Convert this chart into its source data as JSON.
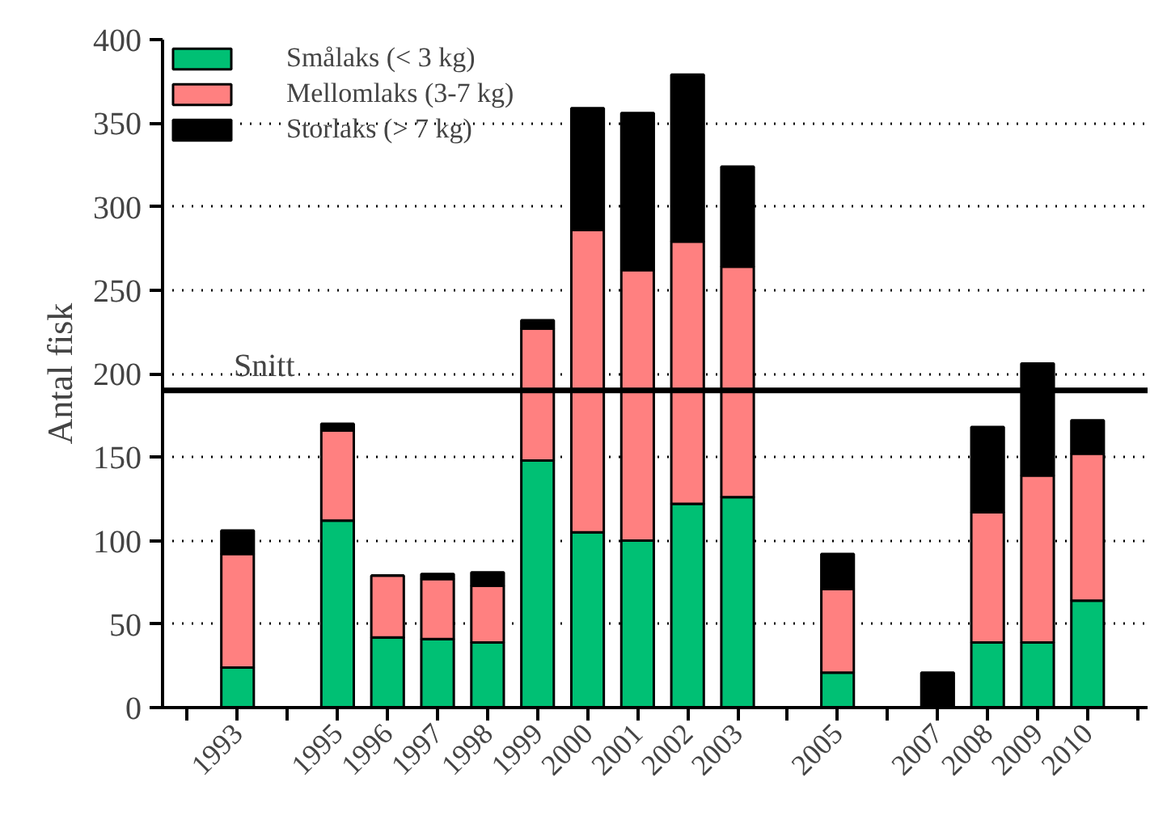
{
  "chart_data": {
    "type": "bar",
    "stacked": true,
    "ylabel": "Antal fisk",
    "x": [
      1993,
      1995,
      1996,
      1997,
      1998,
      1999,
      2000,
      2001,
      2002,
      2003,
      2005,
      2007,
      2008,
      2009,
      2010
    ],
    "series": [
      {
        "name": "Smålaks (< 3 kg)",
        "color": "#00c074",
        "values": [
          24,
          112,
          42,
          41,
          39,
          148,
          105,
          100,
          122,
          126,
          21,
          null,
          39,
          39,
          64
        ]
      },
      {
        "name": "Mellomlaks (3-7 kg)",
        "color": "#ff8080",
        "values": [
          68,
          54,
          37,
          36,
          34,
          79,
          181,
          162,
          157,
          138,
          50,
          null,
          78,
          100,
          88
        ]
      },
      {
        "name": "Storlaks (> 7 kg)",
        "color": "#000000",
        "values": [
          14,
          4,
          0,
          3,
          8,
          5,
          73,
          94,
          100,
          60,
          21,
          21,
          51,
          67,
          20
        ]
      }
    ],
    "xlim": [
      1991.5,
      2011.2
    ],
    "xticks": [
      {
        "value": 1992,
        "label": null
      },
      1993,
      {
        "value": 1994,
        "label": null
      },
      1995,
      1996,
      1997,
      1998,
      1999,
      2000,
      2001,
      2002,
      2003,
      {
        "value": 2004,
        "label": null
      },
      2005,
      {
        "value": 2006,
        "label": null
      },
      2007,
      2008,
      2009,
      2010,
      {
        "value": 2011,
        "label": null
      }
    ],
    "ylim": [
      0,
      400
    ],
    "yticks": [
      0,
      50,
      100,
      150,
      200,
      250,
      300,
      350,
      400
    ],
    "ref_lines": [
      {
        "axis": "y",
        "value": 190,
        "label": "Snitt",
        "color": "#000000"
      }
    ],
    "grid": "y",
    "legend": "top left"
  }
}
